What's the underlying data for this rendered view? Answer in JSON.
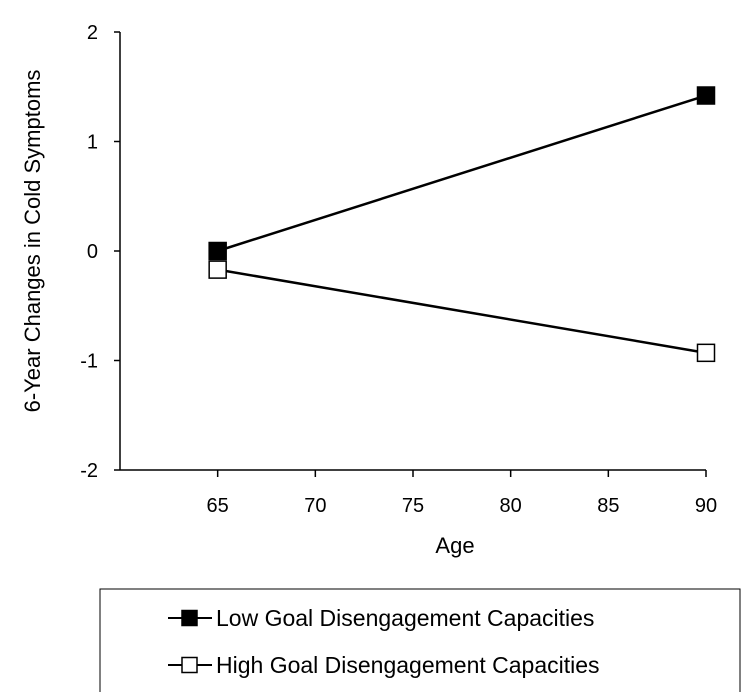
{
  "chart_data": {
    "type": "line",
    "title": "",
    "xlabel": "Age",
    "ylabel": "6-Year Changes in Cold Symptoms",
    "xlim": [
      60,
      90
    ],
    "ylim": [
      -2,
      2
    ],
    "xticks": [
      65,
      70,
      75,
      80,
      85,
      90
    ],
    "yticks": [
      -2,
      -1,
      0,
      1,
      2
    ],
    "grid": false,
    "legend_position": "bottom",
    "series": [
      {
        "name": "Low Goal Disengagement Capacities",
        "marker": "filled-square",
        "color": "#000000",
        "points": [
          {
            "x": 65,
            "y": 0.0
          },
          {
            "x": 90,
            "y": 1.42
          }
        ]
      },
      {
        "name": "High Goal Disengagement Capacities",
        "marker": "open-square",
        "color": "#000000",
        "points": [
          {
            "x": 65,
            "y": -0.17
          },
          {
            "x": 90,
            "y": -0.93
          }
        ]
      }
    ]
  }
}
